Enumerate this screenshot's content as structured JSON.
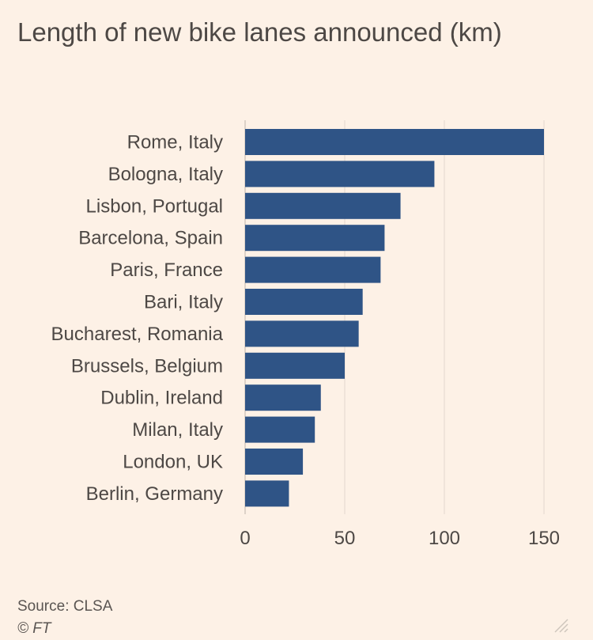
{
  "title": "Length of new bike lanes announced (km)",
  "source": "Source: CLSA",
  "copyright": "© FT",
  "colors": {
    "background": "#fdf1e6",
    "bar": "#2f5486",
    "grid": "#e2d7cd",
    "text": "#4d4845"
  },
  "icons": {
    "corner": "resize-handle-icon"
  },
  "chart_data": {
    "type": "bar",
    "orientation": "horizontal",
    "categories": [
      "Rome, Italy",
      "Bologna, Italy",
      "Lisbon, Portugal",
      "Barcelona, Spain",
      "Paris, France",
      "Bari, Italy",
      "Bucharest, Romania",
      "Brussels, Belgium",
      "Dublin, Ireland",
      "Milan, Italy",
      "London, UK",
      "Berlin, Germany"
    ],
    "values": [
      150,
      95,
      78,
      70,
      68,
      59,
      57,
      50,
      38,
      35,
      29,
      22
    ],
    "xlim": [
      0,
      150
    ],
    "xticks": [
      0,
      50,
      100,
      150
    ],
    "title": "Length of new bike lanes announced (km)",
    "xlabel": "",
    "ylabel": "",
    "grid": true
  }
}
